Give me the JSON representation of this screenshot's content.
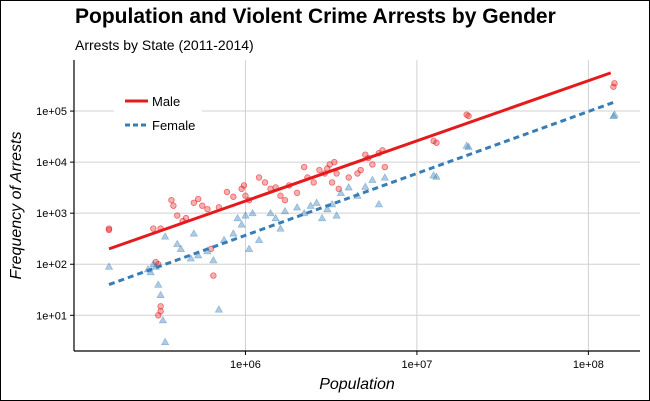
{
  "title": "Population and Violent Crime Arrests by Gender",
  "subtitle": "Arrests by State (2011-2014)",
  "colors": {
    "male": "#e41a1c",
    "female": "#377eb8",
    "grid": "#d0d0d0"
  },
  "chart_data": {
    "type": "scatter",
    "title": "Population and Violent Crime Arrests by Gender",
    "subtitle": "Arrests by State (2011-2014)",
    "xlabel": "Population",
    "ylabel": "Frequency of Arrests",
    "x_scale": "log10",
    "y_scale": "log10",
    "xlim": [
      100000,
      200000000
    ],
    "ylim": [
      2,
      1000000
    ],
    "x_ticks": [
      1000000,
      10000000,
      100000000
    ],
    "x_tick_labels": [
      "1e+06",
      "1e+07",
      "1e+08"
    ],
    "y_ticks": [
      10,
      100,
      1000,
      10000,
      100000
    ],
    "y_tick_labels": [
      "1e+01",
      "1e+02",
      "1e+03",
      "1e+04",
      "1e+05"
    ],
    "grid": true,
    "legend_position": "top-left",
    "series": [
      {
        "name": "Male",
        "marker": "circle",
        "color": "#e41a1c",
        "points": [
          [
            160000,
            470
          ],
          [
            160000,
            500
          ],
          [
            300000,
            110
          ],
          [
            310000,
            100
          ],
          [
            290000,
            500
          ],
          [
            320000,
            500
          ],
          [
            320000,
            15
          ],
          [
            320000,
            12
          ],
          [
            310000,
            10
          ],
          [
            370000,
            1800
          ],
          [
            380000,
            1400
          ],
          [
            400000,
            900
          ],
          [
            430000,
            700
          ],
          [
            450000,
            800
          ],
          [
            500000,
            1600
          ],
          [
            530000,
            1900
          ],
          [
            560000,
            1400
          ],
          [
            600000,
            1200
          ],
          [
            630000,
            200
          ],
          [
            650000,
            60
          ],
          [
            700000,
            1300
          ],
          [
            780000,
            2600
          ],
          [
            850000,
            2100
          ],
          [
            950000,
            3000
          ],
          [
            980000,
            3500
          ],
          [
            1000000,
            2200
          ],
          [
            1050000,
            1800
          ],
          [
            1200000,
            5000
          ],
          [
            1300000,
            4000
          ],
          [
            1400000,
            3000
          ],
          [
            1500000,
            3200
          ],
          [
            1600000,
            2200
          ],
          [
            1700000,
            1800
          ],
          [
            1800000,
            3500
          ],
          [
            2000000,
            2500
          ],
          [
            2200000,
            8000
          ],
          [
            2300000,
            5000
          ],
          [
            2500000,
            4000
          ],
          [
            2700000,
            7000
          ],
          [
            2900000,
            6000
          ],
          [
            3000000,
            7500
          ],
          [
            3100000,
            9000
          ],
          [
            3200000,
            4000
          ],
          [
            3300000,
            10000
          ],
          [
            3400000,
            6000
          ],
          [
            3500000,
            3000
          ],
          [
            4000000,
            5000
          ],
          [
            4500000,
            6000
          ],
          [
            4700000,
            7000
          ],
          [
            5000000,
            14000
          ],
          [
            5200000,
            12000
          ],
          [
            5500000,
            9000
          ],
          [
            6000000,
            15000
          ],
          [
            6300000,
            17000
          ],
          [
            6500000,
            8000
          ],
          [
            12500000,
            26000
          ],
          [
            13000000,
            24000
          ],
          [
            19500000,
            85000
          ],
          [
            20000000,
            80000
          ],
          [
            140000000,
            300000
          ],
          [
            142000000,
            350000
          ]
        ]
      },
      {
        "name": "Female",
        "marker": "triangle",
        "color": "#377eb8",
        "points": [
          [
            160000,
            90
          ],
          [
            270000,
            80
          ],
          [
            280000,
            70
          ],
          [
            290000,
            100
          ],
          [
            300000,
            90
          ],
          [
            310000,
            40
          ],
          [
            320000,
            25
          ],
          [
            330000,
            8
          ],
          [
            340000,
            3
          ],
          [
            340000,
            350
          ],
          [
            400000,
            250
          ],
          [
            420000,
            200
          ],
          [
            480000,
            130
          ],
          [
            500000,
            400
          ],
          [
            530000,
            150
          ],
          [
            600000,
            180
          ],
          [
            650000,
            120
          ],
          [
            700000,
            13
          ],
          [
            750000,
            300
          ],
          [
            850000,
            400
          ],
          [
            900000,
            800
          ],
          [
            950000,
            600
          ],
          [
            1000000,
            900
          ],
          [
            1050000,
            200
          ],
          [
            1100000,
            1000
          ],
          [
            1200000,
            300
          ],
          [
            1400000,
            1000
          ],
          [
            1500000,
            800
          ],
          [
            1600000,
            500
          ],
          [
            1700000,
            1100
          ],
          [
            2000000,
            1300
          ],
          [
            2200000,
            1000
          ],
          [
            2400000,
            1400
          ],
          [
            2600000,
            1600
          ],
          [
            2800000,
            800
          ],
          [
            3000000,
            1200
          ],
          [
            3200000,
            1500
          ],
          [
            3400000,
            900
          ],
          [
            3600000,
            2500
          ],
          [
            4000000,
            3200
          ],
          [
            4500000,
            2200
          ],
          [
            5000000,
            3300
          ],
          [
            5500000,
            4500
          ],
          [
            6000000,
            1500
          ],
          [
            6500000,
            5000
          ],
          [
            12500000,
            5500
          ],
          [
            13000000,
            5200
          ],
          [
            19500000,
            21000
          ],
          [
            20000000,
            20000
          ],
          [
            140000000,
            80000
          ],
          [
            142000000,
            85000
          ]
        ]
      }
    ],
    "fit_lines": [
      {
        "name": "Male",
        "style": "solid",
        "x": [
          160000,
          135000000
        ],
        "y": [
          200,
          560000
        ]
      },
      {
        "name": "Female",
        "style": "dashed",
        "x": [
          160000,
          142000000
        ],
        "y": [
          40,
          150000
        ]
      }
    ]
  }
}
